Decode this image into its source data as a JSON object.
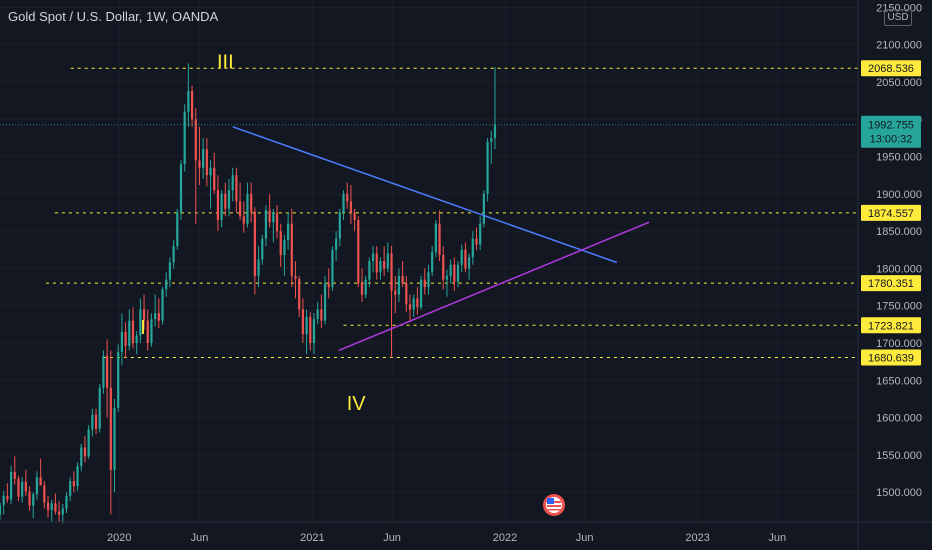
{
  "header": {
    "title": "Gold Spot / U.S. Dollar, 1W, OANDA",
    "currency": "USD"
  },
  "chart_data": {
    "type": "candlestick",
    "yaxis": {
      "min": 1460,
      "max": 2160,
      "ticks": [
        1500,
        1550,
        1600,
        1650,
        1700,
        1750,
        1800,
        1850,
        1900,
        1950,
        2000,
        2050,
        2100,
        2150
      ],
      "tick_labels": [
        "1500.000",
        "1550.000",
        "1600.000",
        "1650.000",
        "1700.000",
        "1750.000",
        "1800.000",
        "1850.000",
        "1900.000",
        "1950.000",
        "2000.000",
        "2050.000",
        "2100.000",
        "2150.000"
      ]
    },
    "xaxis": {
      "labels": [
        "2020",
        "Jun",
        "2021",
        "Jun",
        "2022",
        "Jun",
        "2023",
        "Jun"
      ],
      "label_dates": [
        "2020-01-01",
        "2020-06-01",
        "2021-01-01",
        "2021-06-01",
        "2022-01-01",
        "2022-06-01",
        "2023-01-01",
        "2023-06-01"
      ],
      "range": [
        "2019-05-20",
        "2023-11-01"
      ]
    },
    "levels": [
      {
        "value": 2068.536,
        "label": "2068.536",
        "from": "2019-10-01"
      },
      {
        "value": 1874.557,
        "label": "1874.557",
        "from": "2019-09-01"
      },
      {
        "value": 1780.351,
        "label": "1780.351",
        "from": "2019-08-15"
      },
      {
        "value": 1723.821,
        "label": "1723.821",
        "from": "2021-03-01"
      },
      {
        "value": 1680.639,
        "label": "1680.639",
        "from": "2019-12-01"
      }
    ],
    "current": {
      "price": 1992.755,
      "price_label": "1992.755",
      "countdown": "13:00:32",
      "color": "#26a69a"
    },
    "trendlines": [
      {
        "name": "resistance",
        "color": "#4c7dff",
        "from": {
          "date": "2020-08-03",
          "value": 1990
        },
        "to": {
          "date": "2022-08-01",
          "value": 1808
        }
      },
      {
        "name": "support",
        "color": "#b03adf",
        "from": {
          "date": "2021-02-20",
          "value": 1690
        },
        "to": {
          "date": "2022-10-01",
          "value": 1862
        }
      }
    ],
    "wave_labels": [
      {
        "text": "I",
        "date": "2020-02-15",
        "value": 1712
      },
      {
        "text": "III",
        "date": "2020-07-20",
        "value": 2068
      },
      {
        "text": "IV",
        "date": "2021-03-25",
        "value": 1610
      }
    ],
    "colors": {
      "up": "#26a69a",
      "down": "#ef5350",
      "level": "#ffeb3b",
      "grid": "#2a2e39",
      "separator": "#2a2e39"
    },
    "candles": [
      [
        1470,
        1486,
        1462,
        1483
      ],
      [
        1483,
        1502,
        1470,
        1495
      ],
      [
        1495,
        1512,
        1486,
        1490
      ],
      [
        1490,
        1535,
        1484,
        1527
      ],
      [
        1527,
        1548,
        1510,
        1518
      ],
      [
        1518,
        1522,
        1488,
        1494
      ],
      [
        1494,
        1520,
        1486,
        1514
      ],
      [
        1514,
        1530,
        1495,
        1501
      ],
      [
        1501,
        1508,
        1475,
        1482
      ],
      [
        1482,
        1500,
        1465,
        1497
      ],
      [
        1497,
        1528,
        1490,
        1520
      ],
      [
        1520,
        1545,
        1512,
        1509
      ],
      [
        1509,
        1515,
        1478,
        1486
      ],
      [
        1486,
        1495,
        1466,
        1476
      ],
      [
        1476,
        1490,
        1460,
        1485
      ],
      [
        1485,
        1498,
        1470,
        1474
      ],
      [
        1474,
        1488,
        1460,
        1470
      ],
      [
        1470,
        1484,
        1458,
        1478
      ],
      [
        1478,
        1500,
        1472,
        1495
      ],
      [
        1495,
        1520,
        1488,
        1515
      ],
      [
        1515,
        1528,
        1500,
        1508
      ],
      [
        1508,
        1540,
        1502,
        1535
      ],
      [
        1535,
        1565,
        1528,
        1560
      ],
      [
        1560,
        1575,
        1540,
        1548
      ],
      [
        1548,
        1590,
        1545,
        1584
      ],
      [
        1584,
        1612,
        1575,
        1604
      ],
      [
        1604,
        1612,
        1578,
        1585
      ],
      [
        1585,
        1645,
        1580,
        1640
      ],
      [
        1640,
        1690,
        1632,
        1683
      ],
      [
        1683,
        1705,
        1600,
        1640
      ],
      [
        1640,
        1690,
        1470,
        1530
      ],
      [
        1530,
        1625,
        1500,
        1613
      ],
      [
        1613,
        1698,
        1608,
        1688
      ],
      [
        1688,
        1740,
        1670,
        1715
      ],
      [
        1715,
        1728,
        1680,
        1696
      ],
      [
        1696,
        1745,
        1690,
        1730
      ],
      [
        1730,
        1748,
        1693,
        1700
      ],
      [
        1700,
        1716,
        1685,
        1710
      ],
      [
        1710,
        1760,
        1700,
        1745
      ],
      [
        1745,
        1765,
        1718,
        1730
      ],
      [
        1730,
        1745,
        1690,
        1700
      ],
      [
        1700,
        1740,
        1695,
        1732
      ],
      [
        1732,
        1765,
        1722,
        1740
      ],
      [
        1740,
        1760,
        1720,
        1730
      ],
      [
        1730,
        1775,
        1725,
        1772
      ],
      [
        1772,
        1795,
        1762,
        1785
      ],
      [
        1785,
        1815,
        1775,
        1808
      ],
      [
        1808,
        1838,
        1800,
        1830
      ],
      [
        1830,
        1880,
        1825,
        1875
      ],
      [
        1875,
        1945,
        1865,
        1940
      ],
      [
        1940,
        2020,
        1930,
        2010
      ],
      [
        2010,
        2075,
        1990,
        2038
      ],
      [
        2038,
        2045,
        1990,
        2000
      ],
      [
        2000,
        2015,
        1860,
        1945
      ],
      [
        1945,
        1990,
        1912,
        1935
      ],
      [
        1935,
        1975,
        1920,
        1960
      ],
      [
        1960,
        1975,
        1910,
        1925
      ],
      [
        1925,
        1945,
        1880,
        1935
      ],
      [
        1935,
        1955,
        1900,
        1905
      ],
      [
        1905,
        1925,
        1850,
        1865
      ],
      [
        1865,
        1905,
        1855,
        1900
      ],
      [
        1900,
        1915,
        1870,
        1880
      ],
      [
        1880,
        1920,
        1870,
        1905
      ],
      [
        1905,
        1935,
        1890,
        1925
      ],
      [
        1925,
        1935,
        1875,
        1890
      ],
      [
        1890,
        1915,
        1865,
        1870
      ],
      [
        1870,
        1890,
        1848,
        1860
      ],
      [
        1860,
        1915,
        1855,
        1900
      ],
      [
        1900,
        1915,
        1862,
        1876
      ],
      [
        1876,
        1882,
        1765,
        1790
      ],
      [
        1790,
        1830,
        1775,
        1812
      ],
      [
        1812,
        1845,
        1805,
        1840
      ],
      [
        1840,
        1885,
        1830,
        1878
      ],
      [
        1878,
        1900,
        1855,
        1862
      ],
      [
        1862,
        1880,
        1835,
        1875
      ],
      [
        1875,
        1885,
        1840,
        1850
      ],
      [
        1850,
        1860,
        1802,
        1818
      ],
      [
        1818,
        1845,
        1790,
        1838
      ],
      [
        1838,
        1875,
        1825,
        1860
      ],
      [
        1860,
        1880,
        1775,
        1790
      ],
      [
        1790,
        1810,
        1760,
        1786
      ],
      [
        1786,
        1790,
        1735,
        1745
      ],
      [
        1745,
        1760,
        1700,
        1712
      ],
      [
        1712,
        1745,
        1685,
        1735
      ],
      [
        1735,
        1742,
        1690,
        1700
      ],
      [
        1700,
        1740,
        1685,
        1732
      ],
      [
        1732,
        1755,
        1725,
        1745
      ],
      [
        1745,
        1765,
        1720,
        1730
      ],
      [
        1730,
        1790,
        1725,
        1780
      ],
      [
        1780,
        1800,
        1760,
        1775
      ],
      [
        1775,
        1830,
        1770,
        1825
      ],
      [
        1825,
        1850,
        1810,
        1840
      ],
      [
        1840,
        1880,
        1830,
        1875
      ],
      [
        1875,
        1905,
        1865,
        1900
      ],
      [
        1900,
        1915,
        1880,
        1890
      ],
      [
        1890,
        1912,
        1860,
        1875
      ],
      [
        1875,
        1880,
        1850,
        1865
      ],
      [
        1865,
        1870,
        1775,
        1780
      ],
      [
        1780,
        1800,
        1755,
        1765
      ],
      [
        1765,
        1790,
        1760,
        1785
      ],
      [
        1785,
        1815,
        1775,
        1810
      ],
      [
        1810,
        1830,
        1795,
        1820
      ],
      [
        1820,
        1830,
        1785,
        1795
      ],
      [
        1795,
        1815,
        1785,
        1810
      ],
      [
        1810,
        1830,
        1790,
        1800
      ],
      [
        1800,
        1835,
        1795,
        1820
      ],
      [
        1820,
        1830,
        1680,
        1770
      ],
      [
        1770,
        1790,
        1740,
        1765
      ],
      [
        1765,
        1800,
        1755,
        1790
      ],
      [
        1790,
        1810,
        1775,
        1780
      ],
      [
        1780,
        1790,
        1742,
        1752
      ],
      [
        1752,
        1765,
        1728,
        1745
      ],
      [
        1745,
        1765,
        1735,
        1760
      ],
      [
        1760,
        1775,
        1738,
        1748
      ],
      [
        1748,
        1790,
        1745,
        1785
      ],
      [
        1785,
        1800,
        1765,
        1775
      ],
      [
        1775,
        1805,
        1765,
        1795
      ],
      [
        1795,
        1830,
        1790,
        1822
      ],
      [
        1822,
        1865,
        1815,
        1860
      ],
      [
        1860,
        1878,
        1810,
        1818
      ],
      [
        1818,
        1830,
        1772,
        1785
      ],
      [
        1785,
        1798,
        1762,
        1790
      ],
      [
        1790,
        1812,
        1780,
        1805
      ],
      [
        1805,
        1815,
        1770,
        1782
      ],
      [
        1782,
        1810,
        1775,
        1805
      ],
      [
        1805,
        1832,
        1795,
        1825
      ],
      [
        1825,
        1835,
        1795,
        1800
      ],
      [
        1800,
        1820,
        1785,
        1815
      ],
      [
        1815,
        1850,
        1805,
        1840
      ],
      [
        1840,
        1855,
        1825,
        1832
      ],
      [
        1832,
        1870,
        1825,
        1860
      ],
      [
        1860,
        1905,
        1855,
        1900
      ],
      [
        1900,
        1975,
        1890,
        1970
      ],
      [
        1970,
        1985,
        1940,
        1975
      ],
      [
        1975,
        2070,
        1960,
        1993
      ]
    ]
  }
}
